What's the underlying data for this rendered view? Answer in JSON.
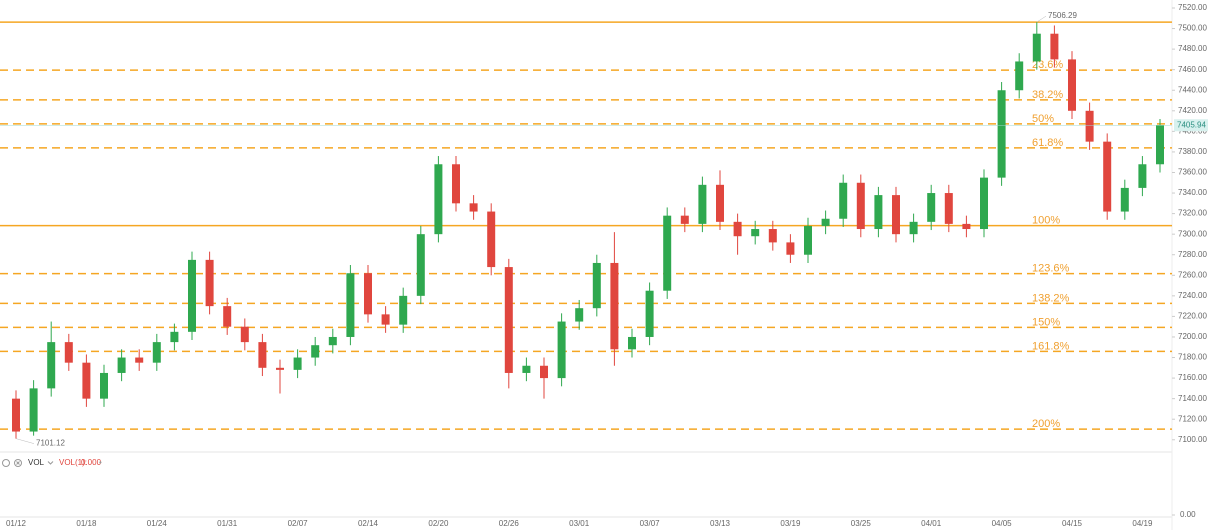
{
  "chart_data": {
    "type": "candlestick",
    "categories": [
      "01/12",
      null,
      null,
      null,
      "01/18",
      null,
      null,
      null,
      "01/24",
      null,
      null,
      null,
      "01/31",
      null,
      null,
      null,
      "02/07",
      null,
      null,
      null,
      "02/14",
      null,
      null,
      null,
      "02/20",
      null,
      null,
      null,
      "02/26",
      null,
      null,
      null,
      "03/01",
      null,
      null,
      null,
      "03/07",
      null,
      null,
      null,
      "03/13",
      null,
      null,
      null,
      "03/19",
      null,
      null,
      null,
      "03/25",
      null,
      null,
      null,
      "04/01",
      null,
      null,
      null,
      "04/05",
      null,
      null,
      null,
      "04/15",
      null,
      null,
      null,
      "04/19",
      null
    ],
    "open": [
      7140,
      7108,
      7150,
      7195,
      7175,
      7140,
      7165,
      7180,
      7175,
      7195,
      7205,
      7275,
      7230,
      7210,
      7195,
      7170,
      7168,
      7180,
      7192,
      7200,
      7262,
      7222,
      7212,
      7240,
      7300,
      7368,
      7330,
      7322,
      7268,
      7165,
      7172,
      7160,
      7215,
      7228,
      7272,
      7188,
      7200,
      7245,
      7318,
      7310,
      7348,
      7312,
      7298,
      7305,
      7292,
      7280,
      7308,
      7315,
      7350,
      7305,
      7338,
      7300,
      7312,
      7340,
      7310,
      7305,
      7355,
      7440,
      7468,
      7495,
      7470,
      7420,
      7390,
      7322,
      7345,
      7368
    ],
    "high": [
      7148,
      7158,
      7215,
      7203,
      7183,
      7173,
      7188,
      7188,
      7203,
      7213,
      7283,
      7283,
      7238,
      7218,
      7203,
      7178,
      7188,
      7200,
      7208,
      7270,
      7270,
      7230,
      7248,
      7308,
      7376,
      7376,
      7338,
      7330,
      7276,
      7180,
      7180,
      7223,
      7236,
      7280,
      7302,
      7208,
      7253,
      7326,
      7326,
      7356,
      7362,
      7320,
      7313,
      7313,
      7300,
      7316,
      7323,
      7358,
      7358,
      7346,
      7346,
      7320,
      7348,
      7348,
      7318,
      7363,
      7448,
      7476,
      7506.29,
      7503,
      7478,
      7428,
      7398,
      7353,
      7376,
      7412
    ],
    "low": [
      7101.12,
      7104,
      7142,
      7167,
      7132,
      7132,
      7157,
      7167,
      7167,
      7187,
      7197,
      7222,
      7202,
      7187,
      7162,
      7145,
      7160,
      7172,
      7184,
      7192,
      7214,
      7204,
      7204,
      7232,
      7292,
      7322,
      7314,
      7260,
      7150,
      7157,
      7140,
      7152,
      7207,
      7220,
      7172,
      7180,
      7192,
      7237,
      7302,
      7302,
      7304,
      7280,
      7290,
      7284,
      7272,
      7272,
      7300,
      7307,
      7297,
      7297,
      7292,
      7292,
      7304,
      7302,
      7297,
      7297,
      7347,
      7432,
      7460,
      7462,
      7412,
      7382,
      7314,
      7314,
      7337,
      7360
    ],
    "close": [
      7108,
      7150,
      7195,
      7175,
      7140,
      7165,
      7180,
      7175,
      7195,
      7205,
      7275,
      7230,
      7210,
      7195,
      7170,
      7168,
      7180,
      7192,
      7200,
      7262,
      7222,
      7212,
      7240,
      7300,
      7368,
      7330,
      7322,
      7268,
      7165,
      7172,
      7160,
      7215,
      7228,
      7272,
      7188,
      7200,
      7245,
      7318,
      7310,
      7348,
      7312,
      7298,
      7305,
      7292,
      7280,
      7308,
      7315,
      7350,
      7305,
      7338,
      7300,
      7312,
      7340,
      7310,
      7305,
      7355,
      7440,
      7468,
      7495,
      7470,
      7420,
      7390,
      7322,
      7345,
      7368,
      7405.94
    ],
    "up_color": "#2fa84f",
    "down_color": "#e0463e",
    "ylim": [
      7092,
      7520
    ],
    "yticks": [
      {
        "value": 7100,
        "label": "7100.00"
      },
      {
        "value": 7120,
        "label": "7120.00"
      },
      {
        "value": 7140,
        "label": "7140.00"
      },
      {
        "value": 7160,
        "label": "7160.00"
      },
      {
        "value": 7180,
        "label": "7180.00"
      },
      {
        "value": 7200,
        "label": "7200.00"
      },
      {
        "value": 7220,
        "label": "7220.00"
      },
      {
        "value": 7240,
        "label": "7240.00"
      },
      {
        "value": 7260,
        "label": "7260.00"
      },
      {
        "value": 7280,
        "label": "7280.00"
      },
      {
        "value": 7300,
        "label": "7300.00"
      },
      {
        "value": 7320,
        "label": "7320.00"
      },
      {
        "value": 7340,
        "label": "7340.00"
      },
      {
        "value": 7360,
        "label": "7360.00"
      },
      {
        "value": 7380,
        "label": "7380.00"
      },
      {
        "value": 7400,
        "label": "7400.00"
      },
      {
        "value": 7420,
        "label": "7420.00"
      },
      {
        "value": 7440,
        "label": "7440.00"
      },
      {
        "value": 7460,
        "label": "7460.00"
      },
      {
        "value": 7480,
        "label": "7480.00"
      },
      {
        "value": 7500,
        "label": "7500.00"
      },
      {
        "value": 7520,
        "label": "7520.00"
      }
    ],
    "level_color": "#f5a623",
    "high_mark": {
      "value": 7506.29,
      "label": "7506.29"
    },
    "low_mark": {
      "value": 7101.12,
      "label": "7101.12"
    },
    "last_price": {
      "value": 7405.94,
      "label": "7405.94"
    },
    "fib_levels": [
      {
        "label": "23.6%",
        "value": 7459.56,
        "style": "dashed"
      },
      {
        "label": "38.2%",
        "value": 7430.66,
        "style": "dashed"
      },
      {
        "label": "50%",
        "value": 7407.3,
        "style": "dashed"
      },
      {
        "label": "61.8%",
        "value": 7383.93,
        "style": "dashed"
      },
      {
        "label": "100%",
        "value": 7308.3,
        "style": "solid"
      },
      {
        "label": "123.6%",
        "value": 7261.57,
        "style": "dashed"
      },
      {
        "label": "138.2%",
        "value": 7232.67,
        "style": "dashed"
      },
      {
        "label": "150%",
        "value": 7209.31,
        "style": "dashed"
      },
      {
        "label": "161.8%",
        "value": 7185.93,
        "style": "dashed"
      },
      {
        "label": "200%",
        "value": 7110.31,
        "style": "dashed"
      }
    ],
    "volume": {
      "name": "VOL",
      "indicator": "VOL(1):",
      "value": {
        "value": 0,
        "label": "0.000"
      },
      "ytick": {
        "value": 0,
        "label": "0.00"
      }
    }
  }
}
